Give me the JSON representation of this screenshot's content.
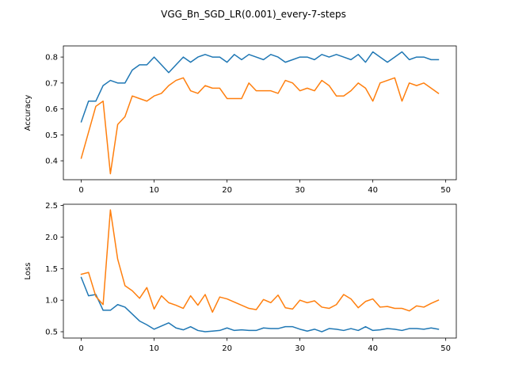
{
  "figure": {
    "title": "VGG_Bn_SGD_LR(0.001)_every-7-steps"
  },
  "chart_data": [
    {
      "type": "line",
      "title": "",
      "xlabel": "",
      "ylabel": "Accuracy",
      "xlim": [
        -2.45,
        51.45
      ],
      "ylim": [
        0.327,
        0.843
      ],
      "xticks": [
        0,
        10,
        20,
        30,
        40,
        50
      ],
      "yticks": [
        0.4,
        0.5,
        0.6,
        0.7,
        0.8
      ],
      "ytick_decimals": 1,
      "grid": false,
      "legend": "none",
      "x": [
        0,
        1,
        2,
        3,
        4,
        5,
        6,
        7,
        8,
        9,
        10,
        11,
        12,
        13,
        14,
        15,
        16,
        17,
        18,
        19,
        20,
        21,
        22,
        23,
        24,
        25,
        26,
        27,
        28,
        29,
        30,
        31,
        32,
        33,
        34,
        35,
        36,
        37,
        38,
        39,
        40,
        41,
        42,
        43,
        44,
        45,
        46,
        47,
        48,
        49
      ],
      "series": [
        {
          "color": "#1f77b4",
          "values": [
            0.55,
            0.63,
            0.63,
            0.69,
            0.71,
            0.7,
            0.7,
            0.75,
            0.77,
            0.77,
            0.8,
            0.77,
            0.74,
            0.77,
            0.8,
            0.78,
            0.8,
            0.81,
            0.8,
            0.8,
            0.78,
            0.81,
            0.79,
            0.81,
            0.8,
            0.79,
            0.81,
            0.8,
            0.78,
            0.79,
            0.8,
            0.8,
            0.79,
            0.81,
            0.8,
            0.81,
            0.8,
            0.79,
            0.81,
            0.78,
            0.82,
            0.8,
            0.78,
            0.8,
            0.82,
            0.79,
            0.8,
            0.8,
            0.79,
            0.79
          ]
        },
        {
          "color": "#ff7f0e",
          "values": [
            0.41,
            0.51,
            0.61,
            0.63,
            0.35,
            0.54,
            0.57,
            0.65,
            0.64,
            0.63,
            0.65,
            0.66,
            0.69,
            0.71,
            0.72,
            0.67,
            0.66,
            0.69,
            0.68,
            0.68,
            0.64,
            0.64,
            0.64,
            0.7,
            0.67,
            0.67,
            0.67,
            0.66,
            0.71,
            0.7,
            0.67,
            0.68,
            0.67,
            0.71,
            0.69,
            0.65,
            0.65,
            0.67,
            0.7,
            0.68,
            0.63,
            0.7,
            0.71,
            0.72,
            0.63,
            0.7,
            0.69,
            0.7,
            0.68,
            0.66
          ]
        }
      ]
    },
    {
      "type": "line",
      "title": "",
      "xlabel": "",
      "ylabel": "Loss",
      "xlim": [
        -2.45,
        51.45
      ],
      "ylim": [
        0.4,
        2.52
      ],
      "xticks": [
        0,
        10,
        20,
        30,
        40,
        50
      ],
      "yticks": [
        0.5,
        1.0,
        1.5,
        2.0,
        2.5
      ],
      "ytick_decimals": 1,
      "grid": false,
      "legend": "none",
      "x": [
        0,
        1,
        2,
        3,
        4,
        5,
        6,
        7,
        8,
        9,
        10,
        11,
        12,
        13,
        14,
        15,
        16,
        17,
        18,
        19,
        20,
        21,
        22,
        23,
        24,
        25,
        26,
        27,
        28,
        29,
        30,
        31,
        32,
        33,
        34,
        35,
        36,
        37,
        38,
        39,
        40,
        41,
        42,
        43,
        44,
        45,
        46,
        47,
        48,
        49
      ],
      "series": [
        {
          "color": "#1f77b4",
          "values": [
            1.36,
            1.07,
            1.09,
            0.84,
            0.84,
            0.93,
            0.89,
            0.78,
            0.67,
            0.61,
            0.54,
            0.59,
            0.64,
            0.56,
            0.53,
            0.58,
            0.52,
            0.5,
            0.51,
            0.52,
            0.56,
            0.52,
            0.53,
            0.52,
            0.52,
            0.56,
            0.55,
            0.55,
            0.58,
            0.58,
            0.54,
            0.51,
            0.54,
            0.5,
            0.55,
            0.54,
            0.52,
            0.55,
            0.52,
            0.58,
            0.52,
            0.53,
            0.55,
            0.54,
            0.52,
            0.55,
            0.55,
            0.54,
            0.56,
            0.54
          ]
        },
        {
          "color": "#ff7f0e",
          "values": [
            1.41,
            1.44,
            1.06,
            0.93,
            2.43,
            1.65,
            1.23,
            1.15,
            1.03,
            1.2,
            0.86,
            1.07,
            0.96,
            0.92,
            0.87,
            1.07,
            0.92,
            1.09,
            0.81,
            1.05,
            1.02,
            0.97,
            0.92,
            0.87,
            0.85,
            1.01,
            0.96,
            1.08,
            0.88,
            0.86,
            1.0,
            0.96,
            0.99,
            0.89,
            0.87,
            0.93,
            1.09,
            1.02,
            0.88,
            0.98,
            1.02,
            0.89,
            0.9,
            0.87,
            0.87,
            0.83,
            0.91,
            0.89,
            0.95,
            1.0
          ]
        }
      ]
    }
  ]
}
